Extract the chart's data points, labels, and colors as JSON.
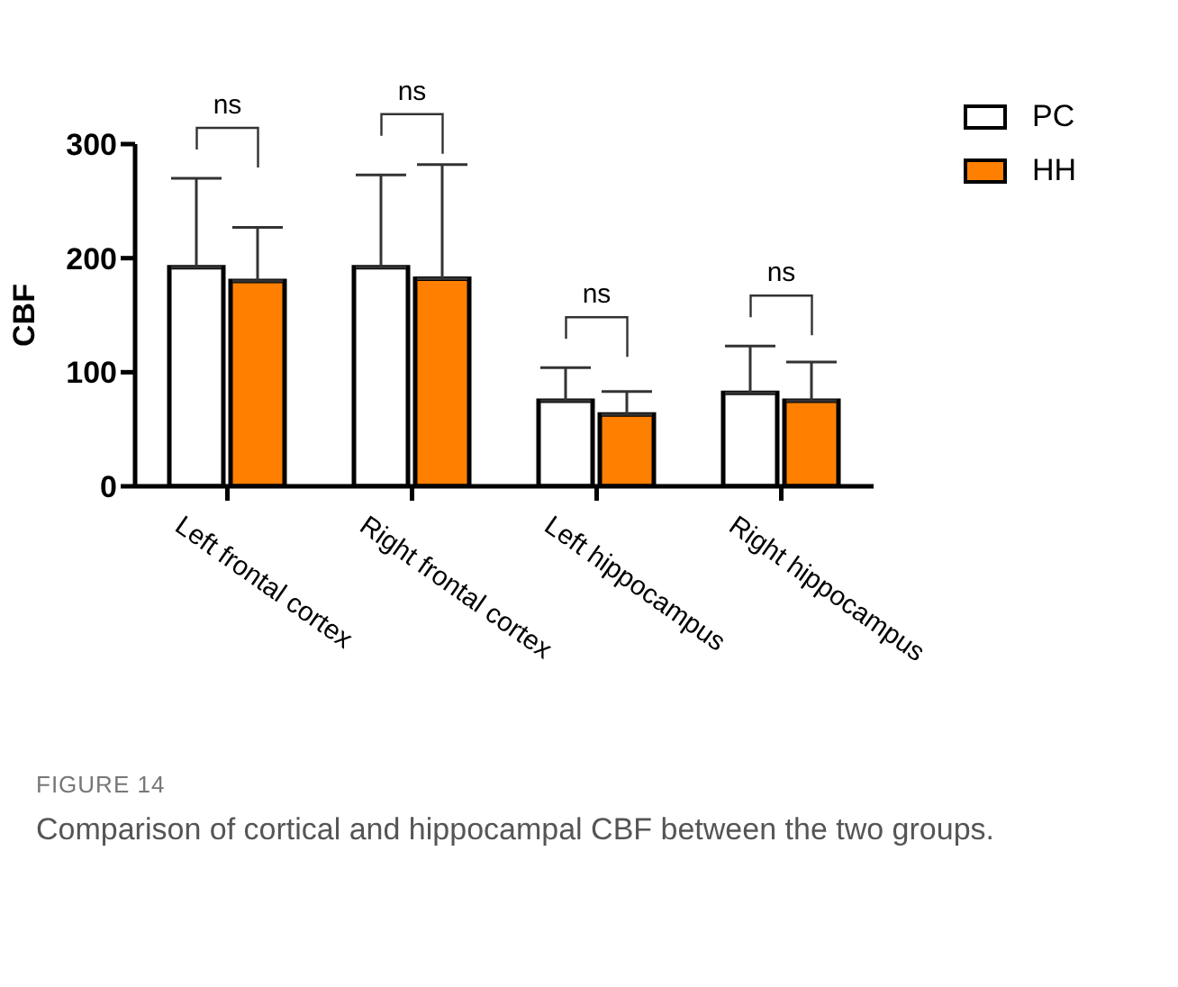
{
  "chart_data": {
    "type": "bar",
    "ylabel": "CBF",
    "categories": [
      "Left frontal cortex",
      "Right frontal cortex",
      "Left hippocampus",
      "Right hippocampus"
    ],
    "series": [
      {
        "name": "PC",
        "color": "#ffffff",
        "values": [
          192,
          192,
          75,
          82
        ],
        "errors": [
          [
            192,
            270
          ],
          [
            192,
            273
          ],
          [
            75,
            104
          ],
          [
            82,
            123
          ]
        ]
      },
      {
        "name": "HH",
        "color": "#ff8000",
        "values": [
          180,
          182,
          63,
          75
        ],
        "errors": [
          [
            180,
            227
          ],
          [
            182,
            282
          ],
          [
            63,
            83
          ],
          [
            75,
            109
          ]
        ]
      }
    ],
    "ylim": [
      0,
      300
    ],
    "yticks": [
      0,
      100,
      200,
      300
    ],
    "grid": false,
    "legend": "top right",
    "annotations": [
      "ns",
      "ns",
      "ns",
      "ns",
      "FIGURE 14",
      "Comparison of cortical and hippocampal CBF between the two groups."
    ]
  }
}
